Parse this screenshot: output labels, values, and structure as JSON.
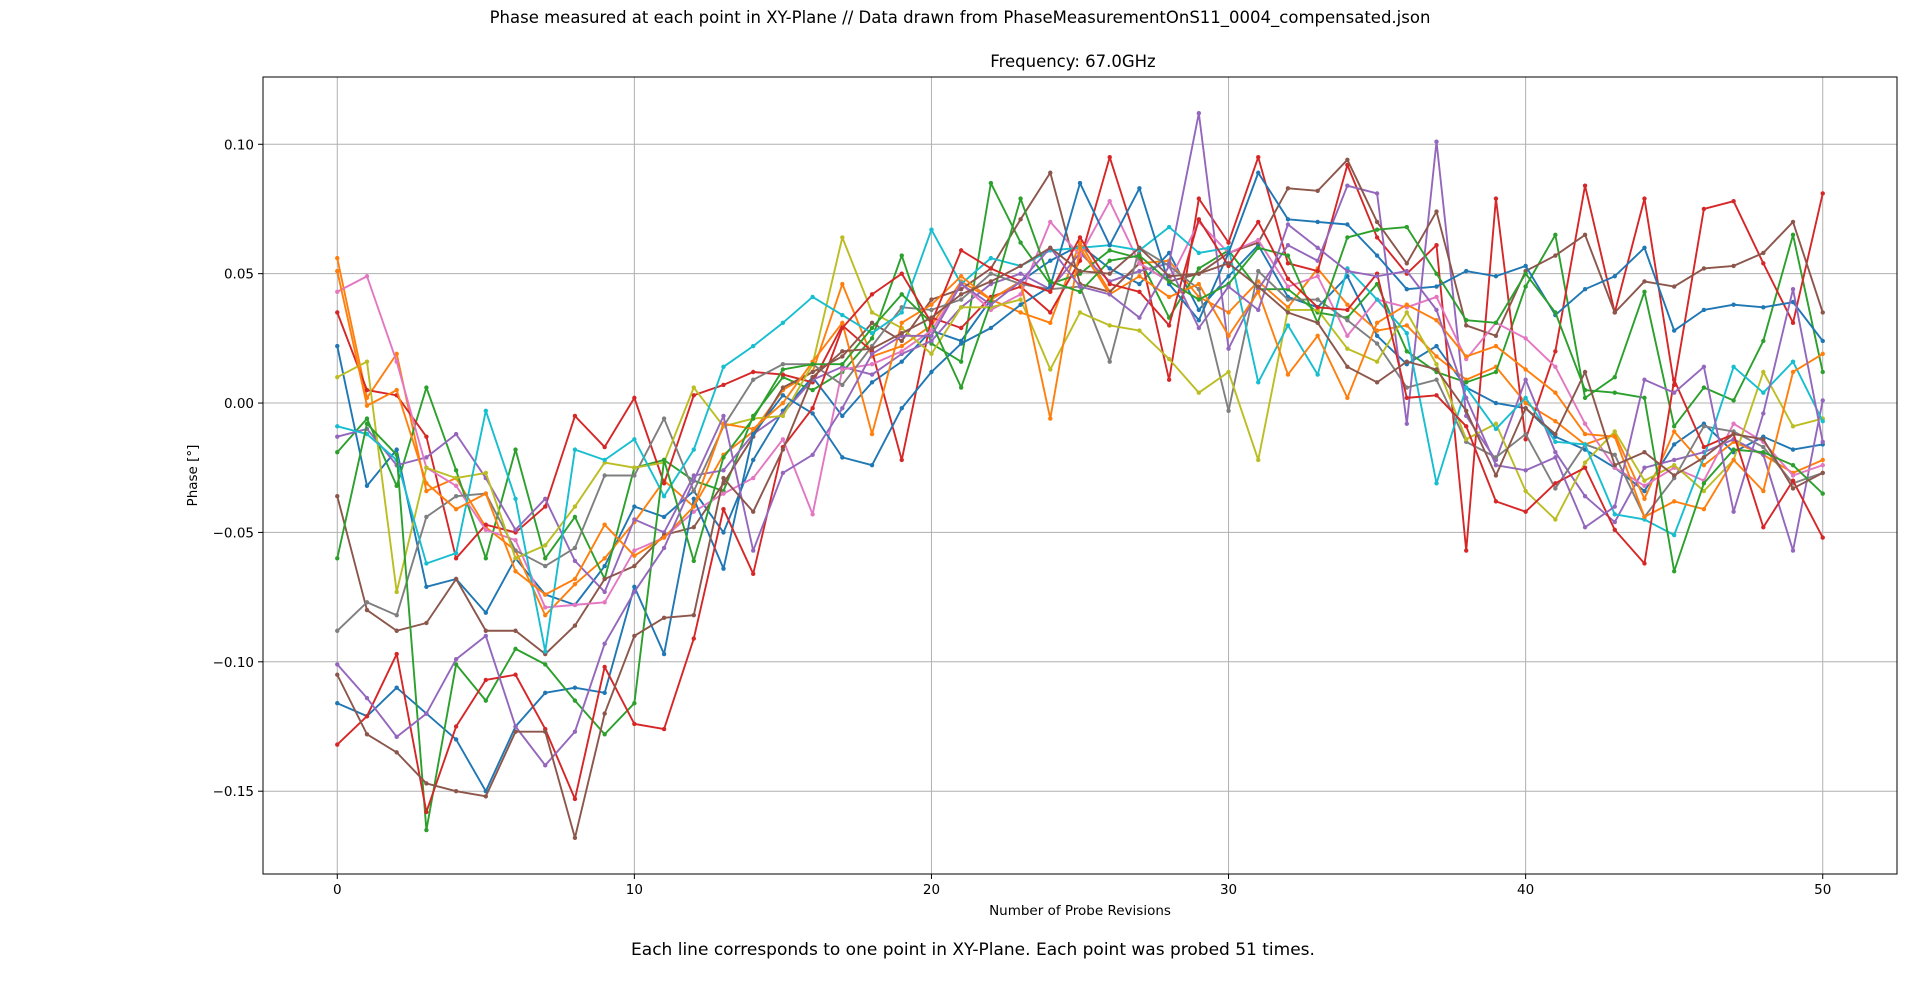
{
  "chart_data": {
    "type": "line",
    "title": "Phase measured at each point in XY-Plane // Data drawn from PhaseMeasurementOnS11_0004_compensated.json",
    "subtitle": "Frequency: 67.0GHz",
    "footnote": "Each line corresponds to one point in XY-Plane. Each point was probed 51 times.",
    "xlabel": "Number of Probe Revisions",
    "ylabel": "Phase [°]",
    "xlim": [
      -2.5,
      52.5
    ],
    "ylim": [
      -0.182,
      0.126
    ],
    "xticks": [
      0,
      10,
      20,
      30,
      40,
      50
    ],
    "xtick_labels": [
      "0",
      "10",
      "20",
      "30",
      "40",
      "50"
    ],
    "yticks": [
      -0.15,
      -0.1,
      -0.05,
      0.0,
      0.05,
      0.1
    ],
    "ytick_labels": [
      "−0.15",
      "−0.10",
      "−0.05",
      "0.00",
      "0.05",
      "0.10"
    ],
    "grid": true,
    "x": [
      0,
      1,
      2,
      3,
      4,
      5,
      6,
      7,
      8,
      9,
      10,
      11,
      12,
      13,
      14,
      15,
      16,
      17,
      18,
      19,
      20,
      21,
      22,
      23,
      24,
      25,
      26,
      27,
      28,
      29,
      30,
      31,
      32,
      33,
      34,
      35,
      36,
      37,
      38,
      39,
      40,
      41,
      42,
      43,
      44,
      45,
      46,
      47,
      48,
      49,
      50
    ],
    "series": [
      {
        "color": "#1f77b4",
        "values": [
          0.022,
          -0.032,
          -0.018,
          -0.071,
          -0.068,
          -0.081,
          -0.06,
          -0.074,
          -0.078,
          -0.063,
          -0.04,
          -0.044,
          -0.034,
          -0.05,
          -0.022,
          -0.003,
          0.01,
          -0.005,
          0.008,
          0.016,
          0.028,
          0.024,
          0.04,
          0.047,
          0.055,
          0.061,
          0.052,
          0.046,
          0.058,
          0.036,
          0.049,
          0.061,
          0.041,
          0.037,
          0.049,
          0.026,
          0.015,
          0.022,
          0.006,
          0.0,
          -0.002,
          -0.013,
          -0.018,
          -0.025,
          -0.034,
          -0.016,
          -0.008,
          -0.019,
          -0.013,
          -0.018,
          -0.016
        ]
      },
      {
        "color": "#ff7f0e",
        "values": [
          0.056,
          0.002,
          0.019,
          -0.034,
          -0.029,
          -0.048,
          -0.057,
          -0.082,
          -0.07,
          -0.06,
          -0.046,
          -0.03,
          -0.04,
          -0.02,
          -0.011,
          0.005,
          0.012,
          0.046,
          0.018,
          0.022,
          0.03,
          0.047,
          0.04,
          0.035,
          0.031,
          0.062,
          0.043,
          0.054,
          0.055,
          0.041,
          0.035,
          0.047,
          0.037,
          0.052,
          0.038,
          0.028,
          0.03,
          0.018,
          0.009,
          0.014,
          0.0,
          -0.007,
          -0.016,
          -0.012,
          -0.037,
          -0.011,
          -0.024,
          -0.015,
          -0.02,
          -0.027,
          -0.022
        ]
      },
      {
        "color": "#2ca02c",
        "values": [
          -0.019,
          -0.006,
          -0.032,
          0.006,
          -0.026,
          -0.06,
          -0.018,
          -0.06,
          -0.044,
          -0.068,
          -0.025,
          -0.022,
          -0.03,
          -0.034,
          -0.005,
          0.01,
          0.005,
          0.012,
          0.025,
          0.057,
          0.023,
          0.016,
          0.085,
          0.062,
          0.046,
          0.05,
          0.059,
          0.056,
          0.033,
          0.052,
          0.059,
          0.044,
          0.044,
          0.035,
          0.033,
          0.046,
          0.02,
          0.012,
          0.008,
          0.012,
          0.045,
          0.065,
          0.002,
          0.01,
          0.043,
          -0.009,
          0.006,
          0.001,
          0.024,
          0.065,
          0.012
        ]
      },
      {
        "color": "#d62728",
        "values": [
          0.035,
          0.005,
          0.003,
          -0.013,
          -0.06,
          -0.047,
          -0.05,
          -0.04,
          -0.005,
          -0.017,
          0.002,
          -0.031,
          0.003,
          0.007,
          0.012,
          0.011,
          0.008,
          0.03,
          0.02,
          -0.022,
          0.033,
          0.029,
          0.041,
          0.045,
          0.035,
          0.055,
          0.095,
          0.059,
          0.009,
          0.079,
          0.062,
          0.095,
          0.054,
          0.051,
          0.092,
          0.064,
          0.05,
          0.061,
          -0.057,
          0.079,
          -0.014,
          0.02,
          0.084,
          0.035,
          0.079,
          0.007,
          0.075,
          0.078,
          0.054,
          0.031,
          0.081
        ]
      },
      {
        "color": "#9467bd",
        "values": [
          -0.013,
          -0.01,
          -0.024,
          -0.021,
          -0.012,
          -0.029,
          -0.049,
          -0.037,
          -0.061,
          -0.073,
          -0.045,
          -0.05,
          -0.028,
          -0.026,
          -0.012,
          -0.004,
          0.009,
          0.014,
          0.011,
          0.019,
          0.024,
          0.037,
          0.046,
          0.05,
          0.044,
          0.058,
          0.047,
          0.051,
          0.054,
          0.112,
          0.021,
          0.044,
          0.061,
          0.055,
          0.084,
          0.081,
          -0.008,
          0.101,
          -0.005,
          -0.022,
          0.009,
          -0.019,
          -0.036,
          -0.046,
          -0.025,
          -0.022,
          -0.019,
          -0.014,
          -0.02,
          -0.057,
          0.001
        ]
      },
      {
        "color": "#8c564b",
        "values": [
          -0.036,
          -0.08,
          -0.088,
          -0.085,
          -0.068,
          -0.088,
          -0.088,
          -0.097,
          -0.086,
          -0.068,
          -0.063,
          -0.051,
          -0.048,
          -0.031,
          -0.013,
          0.006,
          0.012,
          0.018,
          0.031,
          0.024,
          0.04,
          0.044,
          0.052,
          0.071,
          0.089,
          0.046,
          0.043,
          0.054,
          0.047,
          0.05,
          0.058,
          0.062,
          0.083,
          0.082,
          0.094,
          0.07,
          0.054,
          0.074,
          0.03,
          0.026,
          0.051,
          0.057,
          0.065,
          0.035,
          0.047,
          0.045,
          0.052,
          0.053,
          0.058,
          0.07,
          0.035
        ]
      },
      {
        "color": "#e377c2",
        "values": [
          0.043,
          0.049,
          0.016,
          -0.025,
          -0.032,
          -0.049,
          -0.053,
          -0.079,
          -0.078,
          -0.077,
          -0.057,
          -0.052,
          -0.042,
          -0.035,
          -0.029,
          -0.014,
          -0.043,
          0.013,
          0.015,
          0.02,
          0.028,
          0.046,
          0.036,
          0.042,
          0.07,
          0.057,
          0.078,
          0.054,
          0.047,
          0.07,
          0.058,
          0.063,
          0.045,
          0.049,
          0.026,
          0.04,
          0.037,
          0.041,
          0.017,
          0.031,
          0.025,
          0.014,
          -0.008,
          -0.025,
          -0.032,
          -0.025,
          -0.03,
          -0.008,
          -0.015,
          -0.028,
          -0.024
        ]
      },
      {
        "color": "#7f7f7f",
        "values": [
          -0.088,
          -0.077,
          -0.082,
          -0.044,
          -0.036,
          -0.035,
          -0.057,
          -0.063,
          -0.056,
          -0.028,
          -0.028,
          -0.006,
          -0.034,
          -0.009,
          0.009,
          0.015,
          0.015,
          0.007,
          0.022,
          0.037,
          0.036,
          0.04,
          0.05,
          0.046,
          0.044,
          0.045,
          0.016,
          0.06,
          0.053,
          0.044,
          -0.003,
          0.051,
          0.04,
          0.04,
          0.032,
          0.023,
          0.006,
          0.009,
          -0.015,
          -0.021,
          -0.012,
          -0.033,
          -0.016,
          -0.02,
          -0.044,
          -0.029,
          -0.009,
          -0.011,
          -0.017,
          -0.031,
          -0.027
        ]
      },
      {
        "color": "#bcbd22",
        "values": [
          0.01,
          0.016,
          -0.073,
          -0.025,
          -0.029,
          -0.027,
          -0.06,
          -0.055,
          -0.04,
          -0.023,
          -0.025,
          -0.023,
          0.006,
          -0.009,
          -0.006,
          -0.005,
          0.015,
          0.064,
          0.035,
          0.029,
          0.019,
          0.037,
          0.037,
          0.04,
          0.013,
          0.035,
          0.03,
          0.028,
          0.017,
          0.004,
          0.012,
          -0.022,
          0.036,
          0.036,
          0.021,
          0.016,
          0.035,
          0.015,
          -0.014,
          -0.008,
          -0.034,
          -0.045,
          -0.023,
          -0.011,
          -0.03,
          -0.024,
          -0.034,
          -0.022,
          0.012,
          -0.009,
          -0.006
        ]
      },
      {
        "color": "#17becf",
        "values": [
          -0.009,
          -0.012,
          -0.022,
          -0.062,
          -0.058,
          -0.003,
          -0.037,
          -0.096,
          -0.018,
          -0.022,
          -0.014,
          -0.036,
          -0.018,
          0.014,
          0.022,
          0.031,
          0.041,
          0.034,
          0.027,
          0.035,
          0.067,
          0.046,
          0.056,
          0.053,
          0.059,
          0.06,
          0.061,
          0.059,
          0.068,
          0.058,
          0.06,
          0.008,
          0.03,
          0.011,
          0.052,
          0.04,
          0.027,
          -0.031,
          0.006,
          -0.01,
          0.002,
          -0.015,
          -0.016,
          -0.043,
          -0.045,
          -0.051,
          -0.021,
          0.014,
          0.004,
          0.016,
          -0.007
        ]
      },
      {
        "color": "#1f77b4",
        "values": [
          -0.116,
          -0.121,
          -0.11,
          -0.12,
          -0.13,
          -0.15,
          -0.125,
          -0.112,
          -0.11,
          -0.112,
          -0.071,
          -0.097,
          -0.037,
          -0.064,
          -0.012,
          0.003,
          -0.004,
          -0.021,
          -0.024,
          -0.002,
          0.012,
          0.023,
          0.029,
          0.038,
          0.045,
          0.085,
          0.061,
          0.083,
          0.046,
          0.032,
          0.058,
          0.089,
          0.071,
          0.07,
          0.069,
          0.057,
          0.044,
          0.045,
          0.051,
          0.049,
          0.053,
          0.034,
          0.044,
          0.049,
          0.06,
          0.028,
          0.036,
          0.038,
          0.037,
          0.039,
          0.024
        ]
      },
      {
        "color": "#ff7f0e",
        "values": [
          0.051,
          -0.001,
          0.005,
          -0.031,
          -0.041,
          -0.035,
          -0.065,
          -0.074,
          -0.068,
          -0.047,
          -0.059,
          -0.052,
          -0.04,
          -0.008,
          -0.01,
          0.0,
          0.016,
          0.031,
          -0.012,
          0.031,
          0.038,
          0.049,
          0.04,
          0.047,
          -0.006,
          0.06,
          0.042,
          0.049,
          0.041,
          0.046,
          0.026,
          0.043,
          0.011,
          0.026,
          0.002,
          0.031,
          0.038,
          0.032,
          0.018,
          0.022,
          0.013,
          0.004,
          -0.012,
          -0.013,
          -0.044,
          -0.038,
          -0.041,
          -0.022,
          -0.034,
          0.012,
          0.019
        ]
      },
      {
        "color": "#2ca02c",
        "values": [
          -0.06,
          -0.008,
          -0.02,
          -0.165,
          -0.101,
          -0.115,
          -0.095,
          -0.101,
          -0.115,
          -0.128,
          -0.116,
          -0.022,
          -0.061,
          -0.021,
          -0.006,
          0.013,
          0.015,
          0.015,
          0.029,
          0.042,
          0.031,
          0.006,
          0.039,
          0.079,
          0.047,
          0.043,
          0.055,
          0.057,
          0.047,
          0.04,
          0.046,
          0.06,
          0.057,
          0.031,
          0.064,
          0.067,
          0.068,
          0.05,
          0.032,
          0.031,
          0.05,
          0.035,
          0.005,
          0.004,
          0.002,
          -0.065,
          -0.031,
          -0.018,
          -0.019,
          -0.024,
          -0.035
        ]
      },
      {
        "color": "#d62728",
        "values": [
          -0.132,
          -0.121,
          -0.097,
          -0.158,
          -0.125,
          -0.107,
          -0.105,
          -0.126,
          -0.153,
          -0.102,
          -0.124,
          -0.126,
          -0.091,
          -0.041,
          -0.066,
          -0.017,
          -0.002,
          0.029,
          0.042,
          0.05,
          0.031,
          0.059,
          0.052,
          0.047,
          0.043,
          0.064,
          0.046,
          0.043,
          0.03,
          0.071,
          0.053,
          0.07,
          0.048,
          0.037,
          0.036,
          0.05,
          0.002,
          0.003,
          -0.009,
          -0.038,
          -0.042,
          -0.031,
          -0.025,
          -0.049,
          -0.062,
          0.009,
          -0.017,
          -0.012,
          -0.048,
          -0.03,
          -0.052
        ]
      },
      {
        "color": "#9467bd",
        "values": [
          -0.101,
          -0.114,
          -0.129,
          -0.12,
          -0.099,
          -0.09,
          -0.125,
          -0.14,
          -0.127,
          -0.093,
          -0.073,
          -0.056,
          -0.03,
          -0.005,
          -0.057,
          -0.027,
          -0.02,
          -0.002,
          0.019,
          0.026,
          0.026,
          0.046,
          0.038,
          0.047,
          0.06,
          0.045,
          0.042,
          0.033,
          0.053,
          0.029,
          0.045,
          0.036,
          0.069,
          0.06,
          0.051,
          0.049,
          0.051,
          0.036,
          0.002,
          -0.024,
          -0.026,
          -0.021,
          -0.048,
          -0.04,
          0.009,
          0.004,
          0.014,
          -0.042,
          -0.004,
          0.044,
          -0.015
        ]
      },
      {
        "color": "#8c564b",
        "values": [
          -0.105,
          -0.128,
          -0.135,
          -0.147,
          -0.15,
          -0.152,
          -0.127,
          -0.127,
          -0.168,
          -0.12,
          -0.09,
          -0.083,
          -0.082,
          -0.029,
          -0.042,
          -0.018,
          0.01,
          0.02,
          0.021,
          0.027,
          0.033,
          0.042,
          0.047,
          0.053,
          0.06,
          0.051,
          0.05,
          0.06,
          0.049,
          0.05,
          0.054,
          0.045,
          0.035,
          0.031,
          0.014,
          0.008,
          0.016,
          0.013,
          -0.003,
          -0.028,
          -0.002,
          -0.012,
          0.012,
          -0.024,
          -0.019,
          -0.028,
          -0.021,
          -0.012,
          -0.014,
          -0.033,
          -0.027
        ]
      }
    ]
  }
}
